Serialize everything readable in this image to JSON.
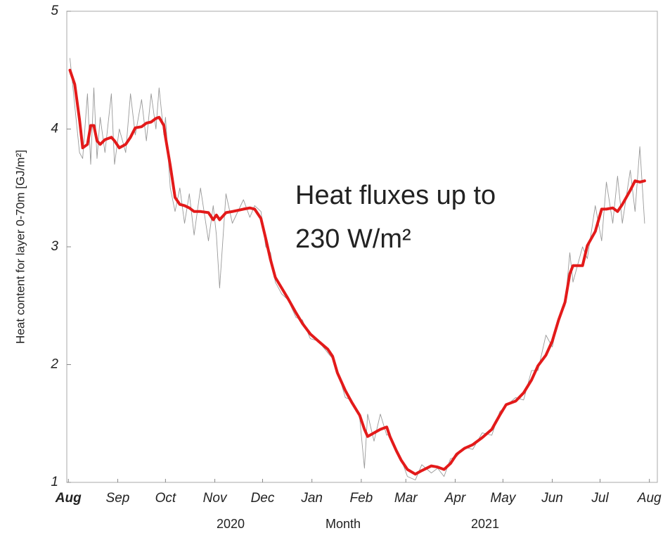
{
  "chart_data": {
    "type": "line",
    "ylabel": "Heat content for layer 0-70m [GJ/m²]",
    "xlabel": "Month",
    "year_labels": [
      "2020",
      "2021"
    ],
    "annotation": [
      "Heat fluxes up to",
      "230 W/m²"
    ],
    "annotation_color": "#ee1111",
    "xlim": [
      -1,
      370
    ],
    "xticks": [
      {
        "value": 0,
        "label": "Aug"
      },
      {
        "value": 31,
        "label": "Sep"
      },
      {
        "value": 61,
        "label": "Oct"
      },
      {
        "value": 92,
        "label": "Nov"
      },
      {
        "value": 122,
        "label": "Dec"
      },
      {
        "value": 153,
        "label": "Jan"
      },
      {
        "value": 184,
        "label": "Feb"
      },
      {
        "value": 212,
        "label": "Mar"
      },
      {
        "value": 243,
        "label": "Apr"
      },
      {
        "value": 273,
        "label": "May"
      },
      {
        "value": 304,
        "label": "Jun"
      },
      {
        "value": 334,
        "label": "Jul"
      },
      {
        "value": 365,
        "label": "Aug"
      }
    ],
    "ylim": [
      1,
      5
    ],
    "yticks": [
      1,
      2,
      3,
      4,
      5
    ],
    "x": [
      1,
      4,
      7,
      9,
      12,
      14,
      16,
      18,
      20,
      23,
      27,
      29,
      32,
      36,
      39,
      42,
      46,
      49,
      52,
      55,
      57,
      60,
      61,
      64,
      67,
      70,
      73,
      76,
      79,
      83,
      88,
      91,
      93,
      95,
      99,
      103,
      110,
      114,
      117,
      121,
      124,
      127,
      130,
      134,
      138,
      143,
      147,
      152,
      157,
      163,
      166,
      169,
      174,
      178,
      183,
      186,
      188,
      192,
      196,
      200,
      202,
      206,
      209,
      213,
      218,
      222,
      228,
      232,
      236,
      240,
      244,
      249,
      254,
      260,
      266,
      271,
      275,
      281,
      286,
      291,
      295,
      300,
      304,
      308,
      312,
      315,
      317,
      323,
      326,
      331,
      335,
      338,
      342,
      345,
      348,
      353,
      356,
      359,
      362
    ],
    "series": [
      {
        "color": "#999999",
        "width": 0.9,
        "values": [
          4.6,
          4.2,
          3.8,
          3.75,
          4.3,
          3.7,
          4.35,
          3.75,
          4.1,
          3.8,
          4.3,
          3.7,
          4.0,
          3.8,
          4.3,
          3.95,
          4.25,
          3.9,
          4.3,
          4.0,
          4.35,
          3.95,
          4.1,
          3.5,
          3.3,
          3.5,
          3.2,
          3.45,
          3.1,
          3.5,
          3.05,
          3.35,
          3.1,
          2.65,
          3.45,
          3.2,
          3.4,
          3.25,
          3.35,
          3.3,
          3.0,
          2.95,
          2.7,
          2.6,
          2.55,
          2.4,
          2.38,
          2.22,
          2.2,
          2.1,
          2.05,
          1.95,
          1.72,
          1.7,
          1.55,
          1.12,
          1.58,
          1.35,
          1.58,
          1.4,
          1.42,
          1.25,
          1.2,
          1.05,
          1.02,
          1.15,
          1.08,
          1.12,
          1.05,
          1.2,
          1.22,
          1.3,
          1.28,
          1.42,
          1.4,
          1.6,
          1.65,
          1.72,
          1.7,
          1.95,
          1.95,
          2.25,
          2.15,
          2.4,
          2.5,
          2.95,
          2.7,
          3.0,
          2.9,
          3.35,
          3.05,
          3.55,
          3.2,
          3.6,
          3.2,
          3.65,
          3.3,
          3.85,
          3.2
        ]
      },
      {
        "color": "#e31a1a",
        "width": 4,
        "values": [
          4.5,
          4.38,
          4.08,
          3.84,
          3.87,
          4.03,
          4.03,
          3.9,
          3.87,
          3.91,
          3.93,
          3.9,
          3.84,
          3.87,
          3.93,
          4.01,
          4.02,
          4.05,
          4.06,
          4.09,
          4.1,
          4.03,
          3.93,
          3.69,
          3.42,
          3.36,
          3.35,
          3.33,
          3.3,
          3.3,
          3.29,
          3.23,
          3.27,
          3.23,
          3.29,
          3.3,
          3.32,
          3.33,
          3.32,
          3.24,
          3.07,
          2.89,
          2.74,
          2.65,
          2.56,
          2.44,
          2.35,
          2.26,
          2.2,
          2.13,
          2.07,
          1.93,
          1.78,
          1.68,
          1.57,
          1.45,
          1.39,
          1.42,
          1.45,
          1.47,
          1.39,
          1.27,
          1.19,
          1.11,
          1.07,
          1.1,
          1.14,
          1.13,
          1.11,
          1.16,
          1.24,
          1.29,
          1.32,
          1.38,
          1.45,
          1.57,
          1.66,
          1.69,
          1.76,
          1.87,
          1.99,
          2.08,
          2.2,
          2.38,
          2.53,
          2.77,
          2.84,
          2.84,
          3.01,
          3.13,
          3.32,
          3.32,
          3.33,
          3.3,
          3.36,
          3.48,
          3.56,
          3.55,
          3.56
        ]
      }
    ]
  }
}
